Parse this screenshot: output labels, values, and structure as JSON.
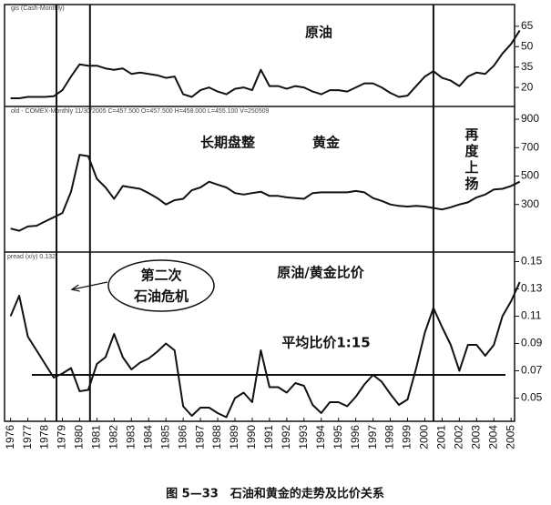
{
  "chart_data": [
    {
      "type": "line",
      "subtitle": "gis (Cash-Monthly)",
      "annotations": [
        "原油"
      ],
      "x": [
        1976,
        1976.5,
        1977,
        1977.5,
        1978,
        1978.5,
        1979,
        1979.5,
        1980,
        1980.5,
        1981,
        1981.5,
        1982,
        1982.5,
        1983,
        1983.5,
        1984,
        1984.5,
        1985,
        1985.5,
        1986,
        1986.5,
        1987,
        1987.5,
        1988,
        1988.5,
        1989,
        1989.5,
        1990,
        1990.5,
        1991,
        1991.5,
        1992,
        1992.5,
        1993,
        1993.5,
        1994,
        1994.5,
        1995,
        1995.5,
        1996,
        1996.5,
        1997,
        1997.5,
        1998,
        1998.5,
        1999,
        1999.5,
        2000,
        2000.5,
        2001,
        2001.5,
        2002,
        2002.5,
        2003,
        2003.5,
        2004,
        2004.5,
        2005,
        2005.5
      ],
      "values": [
        12,
        12,
        13,
        13,
        13,
        13.5,
        18,
        28,
        37,
        36,
        36,
        34,
        33,
        34,
        30,
        31,
        30,
        29,
        27,
        28,
        15,
        13,
        18,
        20,
        17,
        15,
        19,
        20,
        18,
        33,
        21,
        21,
        19,
        21,
        20,
        17,
        15,
        18,
        18,
        17,
        20,
        23,
        23,
        20,
        16,
        13,
        14,
        21,
        28,
        32,
        27,
        25,
        21,
        28,
        31,
        30,
        36,
        45,
        52,
        62
      ],
      "color": "#111",
      "xlim": [
        1975.65,
        2005.2
      ],
      "ylim": [
        6,
        81
      ],
      "yticks": [
        20,
        35,
        50,
        65
      ],
      "event_lines": [
        1978.66,
        1980.6,
        2000.5
      ]
    },
    {
      "type": "line",
      "subtitle": "old - COMEX-Monthly 11/30/2005 C=457.500 O=457.500 H=458.000 L=455.100 V=250509",
      "annotations": [
        "长期盘整",
        "黄金",
        "再度上扬"
      ],
      "x": [
        1976,
        1976.5,
        1977,
        1977.5,
        1978,
        1978.5,
        1979,
        1979.5,
        1980,
        1980.5,
        1981,
        1981.5,
        1982,
        1982.5,
        1983,
        1983.5,
        1984,
        1984.5,
        1985,
        1985.5,
        1986,
        1986.5,
        1987,
        1987.5,
        1988,
        1988.5,
        1989,
        1989.5,
        1990,
        1990.5,
        1991,
        1991.5,
        1992,
        1992.5,
        1993,
        1993.5,
        1994,
        1994.5,
        1995,
        1995.5,
        1996,
        1996.5,
        1997,
        1997.5,
        1998,
        1998.5,
        1999,
        1999.5,
        2000,
        2000.5,
        2001,
        2001.5,
        2002,
        2002.5,
        2003,
        2003.5,
        2004,
        2004.5,
        2005,
        2005.5
      ],
      "values": [
        130,
        115,
        145,
        150,
        180,
        210,
        240,
        390,
        650,
        640,
        480,
        420,
        340,
        430,
        420,
        410,
        380,
        345,
        300,
        330,
        340,
        400,
        420,
        460,
        440,
        420,
        380,
        370,
        380,
        390,
        360,
        360,
        350,
        345,
        340,
        380,
        385,
        385,
        385,
        385,
        395,
        385,
        345,
        325,
        300,
        290,
        285,
        290,
        285,
        275,
        265,
        280,
        300,
        315,
        350,
        370,
        405,
        410,
        430,
        460
      ],
      "color": "#111",
      "xlim": [
        1975.65,
        2005.2
      ],
      "ylim": [
        -35,
        990
      ],
      "yticks": [
        300,
        500,
        700,
        900
      ],
      "event_lines": [
        1978.66,
        1980.6,
        2000.5
      ]
    },
    {
      "type": "line",
      "subtitle": "pread (x/y) 0.132",
      "annotations": [
        "原油/黄金比价",
        "平均比价1:15",
        "第二次",
        "石油危机"
      ],
      "x": [
        1976,
        1976.5,
        1977,
        1977.5,
        1978,
        1978.5,
        1979,
        1979.5,
        1980,
        1980.5,
        1981,
        1981.5,
        1982,
        1982.5,
        1983,
        1983.5,
        1984,
        1984.5,
        1985,
        1985.5,
        1986,
        1986.5,
        1987,
        1987.5,
        1988,
        1988.5,
        1989,
        1989.5,
        1990,
        1990.5,
        1991,
        1991.5,
        1992,
        1992.5,
        1993,
        1993.5,
        1994,
        1994.5,
        1995,
        1995.5,
        1996,
        1996.5,
        1997,
        1997.5,
        1998,
        1998.5,
        1999,
        1999.5,
        2000,
        2000.5,
        2001,
        2001.5,
        2002,
        2002.5,
        2003,
        2003.5,
        2004,
        2004.5,
        2005,
        2005.5
      ],
      "values": [
        0.11,
        0.125,
        0.095,
        0.085,
        0.075,
        0.065,
        0.068,
        0.072,
        0.055,
        0.056,
        0.075,
        0.08,
        0.097,
        0.08,
        0.071,
        0.076,
        0.079,
        0.084,
        0.09,
        0.085,
        0.044,
        0.037,
        0.043,
        0.043,
        0.039,
        0.036,
        0.05,
        0.054,
        0.047,
        0.085,
        0.058,
        0.058,
        0.054,
        0.061,
        0.059,
        0.045,
        0.039,
        0.047,
        0.047,
        0.044,
        0.051,
        0.06,
        0.067,
        0.062,
        0.053,
        0.045,
        0.049,
        0.072,
        0.098,
        0.116,
        0.102,
        0.089,
        0.07,
        0.089,
        0.089,
        0.081,
        0.089,
        0.11,
        0.121,
        0.135
      ],
      "color": "#111",
      "xlim": [
        1975.65,
        2005.2
      ],
      "ylim": [
        0.033,
        0.157
      ],
      "yticks": [
        0.05,
        0.07,
        0.09,
        0.11,
        0.13,
        0.15
      ],
      "hline": 0.067,
      "event_lines": [
        1978.66,
        1980.6,
        2000.5
      ],
      "xticks": [
        1976,
        1977,
        1978,
        1979,
        1980,
        1981,
        1982,
        1983,
        1984,
        1985,
        1986,
        1987,
        1988,
        1989,
        1990,
        1991,
        1992,
        1993,
        1994,
        1995,
        1996,
        1997,
        1998,
        1999,
        2000,
        2001,
        2002,
        2003,
        2004,
        2005
      ]
    }
  ],
  "caption": "图 5—33　石油和黄金的走势及比价关系"
}
